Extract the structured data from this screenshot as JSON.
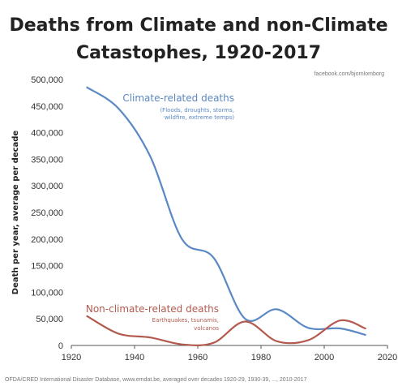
{
  "chart_data": {
    "type": "line",
    "title_line1": "Deaths from Climate and non-Climate",
    "title_line2": "Catastophes, 1920-2017",
    "credit": "facebook.com/bjornlomborg",
    "ylabel": "Death per year, average per decade",
    "source": "OFDA/CRED International Disaster Database, www.emdat.be, averaged over decades 1920-29, 1930-39, ..., 2010-2017",
    "xlim": [
      1920,
      2020
    ],
    "ylim": [
      0,
      500000
    ],
    "x_ticks": [
      1920,
      1940,
      1960,
      1980,
      2000,
      2020
    ],
    "y_ticks": [
      0,
      50000,
      100000,
      150000,
      200000,
      250000,
      300000,
      350000,
      400000,
      450000,
      500000
    ],
    "y_tick_labels": [
      "0",
      "50,000",
      "100,000",
      "150,000",
      "200,000",
      "250,000",
      "300,000",
      "350,000",
      "400,000",
      "450,000",
      "500,000"
    ],
    "grid": false,
    "series": [
      {
        "name": "Climate-related deaths",
        "note_lines": [
          "(Floods, droughts, storms,",
          "wildfire, extreme temps)"
        ],
        "color": "#5a88c4",
        "x": [
          1925,
          1935,
          1945,
          1955,
          1965,
          1975,
          1985,
          1995,
          2005,
          2013
        ],
        "y": [
          485000,
          445000,
          355000,
          200000,
          165000,
          50000,
          68000,
          33000,
          32000,
          20000
        ]
      },
      {
        "name": "Non-climate-related deaths",
        "note_lines": [
          "Earthquakes, tsunamis,",
          "volcanos"
        ],
        "color": "#b35a4e",
        "x": [
          1925,
          1935,
          1945,
          1955,
          1965,
          1975,
          1985,
          1995,
          2005,
          2013
        ],
        "y": [
          55000,
          22000,
          15000,
          2000,
          5000,
          45000,
          8000,
          10000,
          47000,
          32000
        ]
      }
    ]
  }
}
